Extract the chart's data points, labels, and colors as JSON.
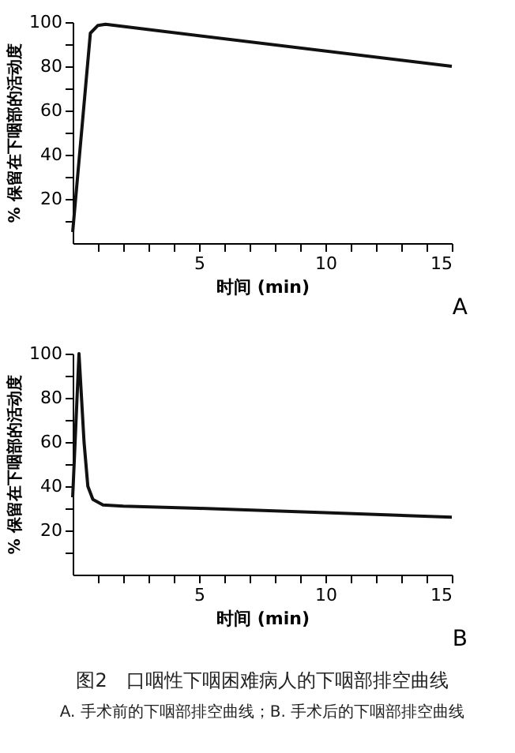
{
  "chart_data": [
    {
      "type": "line",
      "xlabel": "时间 (min)",
      "ylabel": "% 保留在下咽部的活动度",
      "annotations": [
        "A"
      ],
      "grid": false,
      "marker": "none",
      "line_style": "solid",
      "series": [
        {
          "color": "#111111",
          "x": [
            0,
            0.7,
            1,
            1.3,
            15
          ],
          "values": [
            5,
            95,
            98.5,
            99,
            80
          ]
        }
      ],
      "xlim": [
        0,
        15
      ],
      "ylim": [
        0,
        100
      ],
      "xticks": [
        {
          "value": 1,
          "label": null
        },
        {
          "value": 2,
          "label": null
        },
        {
          "value": 3,
          "label": null
        },
        {
          "value": 4,
          "label": null
        },
        5,
        {
          "value": 6,
          "label": null
        },
        {
          "value": 7,
          "label": null
        },
        {
          "value": 8,
          "label": null
        },
        {
          "value": 9,
          "label": null
        },
        10,
        {
          "value": 11,
          "label": null
        },
        {
          "value": 12,
          "label": null
        },
        {
          "value": 13,
          "label": null
        },
        {
          "value": 14,
          "label": null
        },
        15
      ],
      "yticks": [
        {
          "value": 10,
          "label": null
        },
        20,
        {
          "value": 30,
          "label": null
        },
        40,
        {
          "value": 50,
          "label": null
        },
        60,
        {
          "value": 70,
          "label": null
        },
        80,
        {
          "value": 90,
          "label": null
        },
        100
      ]
    },
    {
      "type": "line",
      "xlabel": "时间 (min)",
      "ylabel": "% 保留在下咽部的活动度",
      "title": "图2　口咽性下咽困难病人的下咽部排空曲线",
      "subtitle": "A. 手术前的下咽部排空曲线；B. 手术后的下咽部排空曲线",
      "annotations": [
        "B"
      ],
      "grid": false,
      "marker": "none",
      "line_style": "solid",
      "series": [
        {
          "color": "#111111",
          "x": [
            0,
            0.25,
            0.45,
            0.6,
            0.8,
            1.2,
            2,
            5,
            10,
            15
          ],
          "values": [
            35,
            100,
            60,
            40,
            34,
            31.5,
            31,
            30,
            28,
            26
          ]
        }
      ],
      "xlim": [
        0,
        15
      ],
      "ylim": [
        0,
        100
      ],
      "xticks": [
        {
          "value": 1,
          "label": null
        },
        {
          "value": 2,
          "label": null
        },
        {
          "value": 3,
          "label": null
        },
        {
          "value": 4,
          "label": null
        },
        5,
        {
          "value": 6,
          "label": null
        },
        {
          "value": 7,
          "label": null
        },
        {
          "value": 8,
          "label": null
        },
        {
          "value": 9,
          "label": null
        },
        10,
        {
          "value": 11,
          "label": null
        },
        {
          "value": 12,
          "label": null
        },
        {
          "value": 13,
          "label": null
        },
        {
          "value": 14,
          "label": null
        },
        15
      ],
      "yticks": [
        {
          "value": 10,
          "label": null
        },
        20,
        {
          "value": 30,
          "label": null
        },
        40,
        {
          "value": 50,
          "label": null
        },
        60,
        {
          "value": 70,
          "label": null
        },
        80,
        {
          "value": 90,
          "label": null
        },
        100
      ]
    }
  ]
}
